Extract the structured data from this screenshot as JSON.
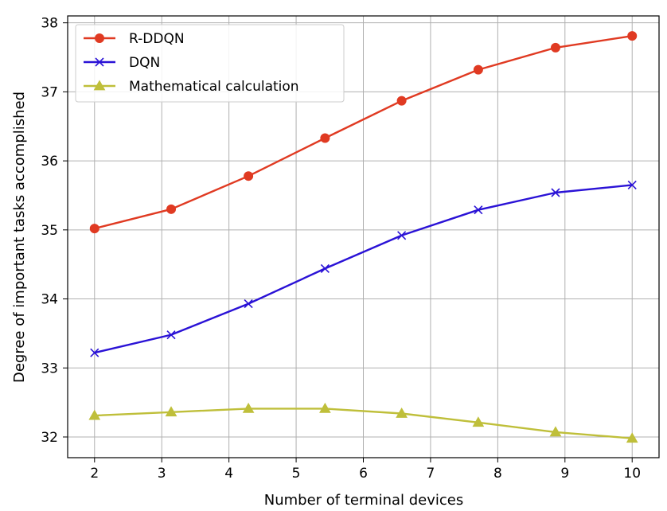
{
  "chart_data": {
    "type": "line",
    "title": "",
    "xlabel": "Number of terminal devices",
    "ylabel": "Degree of important tasks accomplished",
    "xlim": [
      1.6,
      10.4
    ],
    "ylim": [
      31.7,
      38.1
    ],
    "xticks": [
      2,
      3,
      4,
      5,
      6,
      7,
      8,
      9,
      10
    ],
    "yticks": [
      32,
      33,
      34,
      35,
      36,
      37,
      38
    ],
    "grid": true,
    "legend_position": "top-left",
    "x": [
      2,
      3.14,
      4.29,
      5.43,
      6.57,
      7.71,
      8.86,
      10
    ],
    "series": [
      {
        "name": "R-DDQN",
        "marker": "circle",
        "color": "#e03a22",
        "values": [
          35.02,
          35.3,
          35.78,
          36.33,
          36.87,
          37.32,
          37.64,
          37.81
        ]
      },
      {
        "name": "DQN",
        "marker": "x",
        "color": "#2a12d6",
        "values": [
          33.22,
          33.48,
          33.93,
          34.44,
          34.92,
          35.29,
          35.54,
          35.65
        ]
      },
      {
        "name": "Mathematical calculation",
        "marker": "triangle",
        "color": "#bfbf3a",
        "values": [
          32.31,
          32.36,
          32.41,
          32.41,
          32.34,
          32.21,
          32.07,
          31.98
        ]
      }
    ]
  }
}
